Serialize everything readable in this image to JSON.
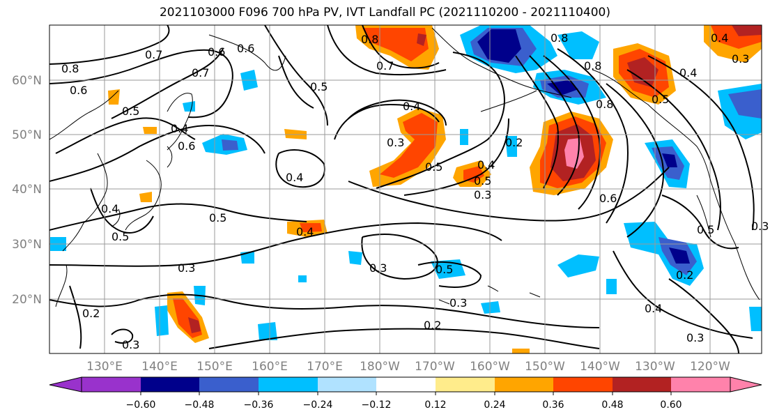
{
  "title": "2021103000 F096 700 hPa PV, IVT Landfall PC (2021110200 - 2021110400)",
  "lat_labels": [
    "60°N",
    "50°N",
    "40°N",
    "30°N",
    "20°N"
  ],
  "lon_labels": [
    "130°E",
    "140°E",
    "150°E",
    "160°E",
    "170°E",
    "180°W",
    "170°W",
    "160°W",
    "150°W",
    "140°W",
    "130°W",
    "120°W"
  ],
  "colorbar": {
    "tick_labels": [
      "−0.60",
      "−0.48",
      "−0.36",
      "−0.24",
      "−0.12",
      "0.12",
      "0.24",
      "0.36",
      "0.48",
      "0.60"
    ],
    "colors": [
      "#9932cc",
      "#00008b",
      "#3a5fcd",
      "#00bfff",
      "#b0e2ff",
      "#ffffff",
      "#ffec8b",
      "#ffa500",
      "#ff4500",
      "#b22222",
      "#ff82ab"
    ]
  },
  "contour_labels": [
    "0.8",
    "0.7",
    "0.6",
    "0.7",
    "0.6",
    "0.5",
    "0.4",
    "0.6",
    "0.5",
    "0.4",
    "0.5",
    "0.4",
    "0.3",
    "0.3",
    "0.2",
    "0.3",
    "0.4",
    "0.3",
    "0.5",
    "0.4",
    "0.3",
    "0.5",
    "0.3",
    "0.2",
    "0.8",
    "0.7",
    "0.4",
    "0.3",
    "0.5",
    "0.4",
    "0.5",
    "0.8",
    "0.8",
    "0.8",
    "0.6",
    "0.4",
    "0.3",
    "0.5",
    "0.2",
    "0.4",
    "0.2",
    "0.3",
    "0.5",
    "0.6"
  ],
  "colors": {
    "pos1": "#ffa500",
    "pos2": "#ff4500",
    "pos3": "#b22222",
    "pos4": "#ff82ab",
    "neg1": "#00bfff",
    "neg2": "#3a5fcd",
    "neg3": "#00008b"
  }
}
